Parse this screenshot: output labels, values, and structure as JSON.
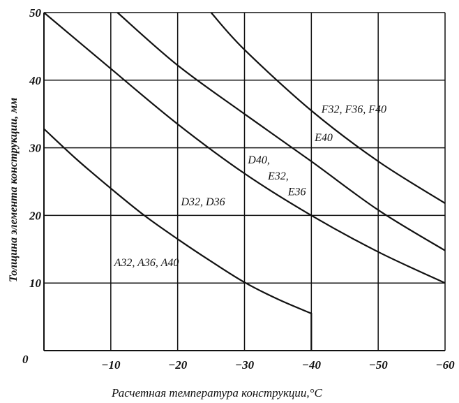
{
  "chart_data": {
    "type": "line",
    "xlabel": "Расчетная температура конструкции,°С",
    "ylabel": "Толщина элемента конструкции, мм",
    "xlim": [
      0,
      -60
    ],
    "ylim": [
      0,
      50
    ],
    "x_ticks": [
      -10,
      -20,
      -30,
      -40,
      -50,
      -60
    ],
    "x_tick_labels": [
      "−10",
      "−20",
      "−30",
      "−40",
      "−50",
      "−60"
    ],
    "y_ticks": [
      10,
      20,
      30,
      40,
      50
    ],
    "y_tick_labels": [
      "10",
      "20",
      "30",
      "40",
      "50"
    ],
    "origin_label": "0",
    "grid": true,
    "series": [
      {
        "name": "A32, A36, A40",
        "x": [
          0,
          -5,
          -10,
          -15,
          -20,
          -25,
          -30,
          -35,
          -40,
          -40
        ],
        "y": [
          32.8,
          28.2,
          24.0,
          20.0,
          16.5,
          13.2,
          10.1,
          7.6,
          5.5,
          0
        ]
      },
      {
        "name": "D32, D36",
        "x": [
          0,
          -10,
          -20,
          -30,
          -40,
          -50,
          -60
        ],
        "y": [
          50,
          41.7,
          33.5,
          26.2,
          20.0,
          14.6,
          10.0
        ]
      },
      {
        "name": "D40, E32, E36",
        "x": [
          -11,
          -20,
          -30,
          -40,
          -50,
          -60
        ],
        "y": [
          50,
          42.2,
          35.0,
          28.0,
          20.8,
          14.8
        ]
      },
      {
        "name": "F32, F36, F40",
        "x": [
          -25,
          -30,
          -40,
          -50,
          -60
        ],
        "y": [
          50,
          44.5,
          35.5,
          28.0,
          21.8
        ]
      }
    ],
    "annotations": [
      {
        "text": "A32, A36, A40",
        "x": -10.5,
        "y": 12.5
      },
      {
        "text": "D32, D36",
        "x": -20.5,
        "y": 21.5
      },
      {
        "text": "D40,",
        "x": -30.5,
        "y": 27.7
      },
      {
        "text": "E32,",
        "x": -33.5,
        "y": 25.3
      },
      {
        "text": "E36",
        "x": -36.5,
        "y": 23.0
      },
      {
        "text": "E40",
        "x": -40.5,
        "y": 31.0
      },
      {
        "text": "F32, F36, F40",
        "x": -41.5,
        "y": 35.2
      }
    ]
  }
}
